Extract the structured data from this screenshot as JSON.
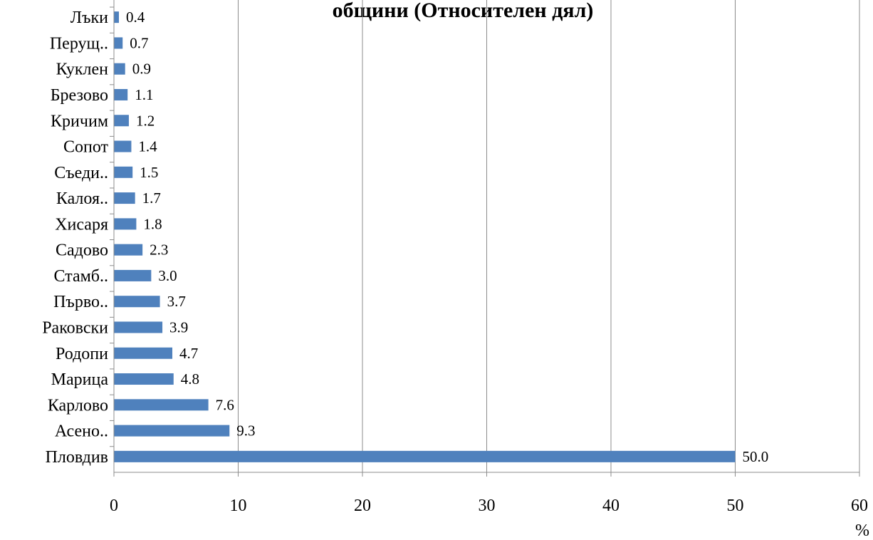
{
  "chart_data": {
    "type": "bar",
    "orientation": "horizontal",
    "title": "общини (Относителен дял)",
    "categories": [
      "Пловдив",
      "Асено..",
      "Карлово",
      "Марица",
      "Родопи",
      "Раковски",
      "Първо..",
      "Стамб..",
      "Садово",
      "Хисаря",
      "Калоя..",
      "Съеди..",
      "Сопот",
      "Кричим",
      "Брезово",
      "Куклен",
      "Перущ..",
      "Лъки"
    ],
    "values": [
      50.0,
      9.3,
      7.6,
      4.8,
      4.7,
      3.9,
      3.7,
      3.0,
      2.3,
      1.8,
      1.7,
      1.5,
      1.4,
      1.2,
      1.1,
      0.9,
      0.7,
      0.4
    ],
    "value_labels": [
      "50.0",
      "9.3",
      "7.6",
      "4.8",
      "4.7",
      "3.9",
      "3.7",
      "3.0",
      "2.3",
      "1.8",
      "1.7",
      "1.5",
      "1.4",
      "1.2",
      "1.1",
      "0.9",
      "0.7",
      "0.4"
    ],
    "xlim": [
      0,
      60
    ],
    "xticks": [
      "0",
      "10",
      "20",
      "30",
      "40",
      "50",
      "60"
    ],
    "xlabel": "%",
    "grid": "vertical",
    "bar_color": "#4f81bd",
    "grid_color": "#8c8c8c"
  }
}
